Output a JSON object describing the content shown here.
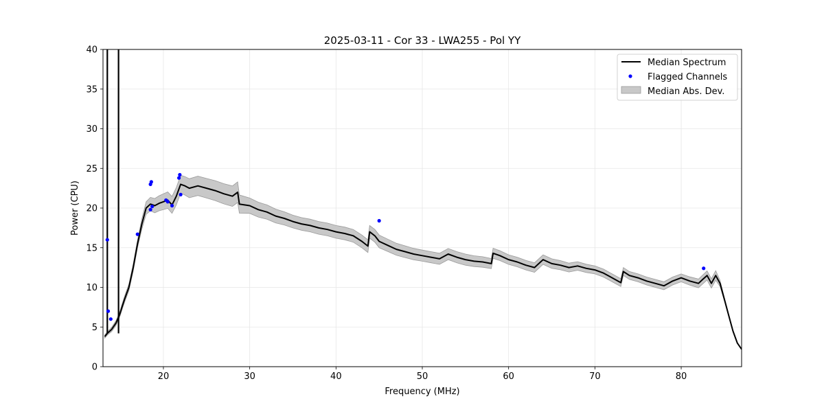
{
  "chart_data": {
    "type": "line",
    "title": "2025-03-11 - Cor 33 - LWA255 - Pol YY",
    "xlabel": "Frequency (MHz)",
    "ylabel": "Power (CPU)",
    "xlim": [
      13,
      87
    ],
    "ylim": [
      0,
      40
    ],
    "xticks": [
      20,
      30,
      40,
      50,
      60,
      70,
      80
    ],
    "yticks": [
      0,
      5,
      10,
      15,
      20,
      25,
      30,
      35,
      40
    ],
    "grid": true,
    "legend_position": "top-right",
    "colors": {
      "median": "#000000",
      "flagged": "#0000ff",
      "mad_fill": "#c8c8c8",
      "mad_edge": "#9a9a9a"
    },
    "series": [
      {
        "name": "Median Spectrum",
        "kind": "line",
        "x": [
          13.2,
          13.5,
          13.6,
          13.7,
          13.8,
          14.0,
          14.5,
          14.9,
          15.0,
          15.2,
          15.5,
          16.0,
          16.5,
          17.0,
          17.5,
          18.0,
          18.5,
          19.0,
          19.5,
          20.0,
          20.5,
          21.0,
          21.5,
          22.0,
          22.5,
          23.0,
          24.0,
          25.0,
          26.0,
          27.0,
          28.0,
          28.6,
          28.8,
          30.0,
          31.0,
          32.0,
          33.0,
          34.0,
          35.0,
          36.0,
          37.0,
          38.0,
          39.0,
          40.0,
          41.0,
          42.0,
          43.0,
          43.7,
          43.9,
          44.5,
          45.0,
          46.0,
          47.0,
          48.0,
          49.0,
          50.0,
          51.0,
          52.0,
          53.0,
          54.0,
          55.0,
          56.0,
          57.0,
          58.0,
          58.2,
          59.0,
          60.0,
          61.0,
          62.0,
          63.0,
          64.0,
          65.0,
          66.0,
          67.0,
          68.0,
          69.0,
          70.0,
          71.0,
          72.0,
          73.0,
          73.3,
          74.0,
          75.0,
          76.0,
          77.0,
          78.0,
          79.0,
          80.0,
          81.0,
          82.0,
          82.5,
          83.0,
          83.5,
          84.0,
          84.5,
          85.0,
          85.5,
          86.0,
          86.5,
          87.0
        ],
        "values": [
          3.8,
          4.2,
          4.3,
          4.4,
          4.5,
          4.7,
          5.5,
          6.5,
          6.8,
          7.5,
          8.5,
          10.0,
          12.5,
          15.5,
          18.0,
          20.0,
          20.5,
          20.3,
          20.6,
          20.8,
          21.0,
          20.4,
          21.5,
          23.0,
          22.8,
          22.5,
          22.8,
          22.5,
          22.2,
          21.8,
          21.5,
          22.0,
          20.5,
          20.3,
          19.8,
          19.5,
          19.0,
          18.7,
          18.3,
          18.0,
          17.8,
          17.5,
          17.3,
          17.0,
          16.8,
          16.5,
          15.8,
          15.2,
          17.0,
          16.5,
          15.8,
          15.3,
          14.8,
          14.5,
          14.2,
          14.0,
          13.8,
          13.6,
          14.2,
          13.8,
          13.5,
          13.3,
          13.2,
          13.0,
          14.3,
          14.0,
          13.5,
          13.2,
          12.8,
          12.5,
          13.5,
          13.0,
          12.8,
          12.5,
          12.7,
          12.4,
          12.2,
          11.8,
          11.2,
          10.6,
          12.0,
          11.5,
          11.2,
          10.8,
          10.5,
          10.2,
          10.8,
          11.2,
          10.8,
          10.5,
          11.0,
          11.5,
          10.5,
          11.5,
          10.5,
          8.5,
          6.5,
          4.5,
          3.0,
          2.2
        ],
        "spikes": [
          {
            "x": 13.5,
            "y": 40
          },
          {
            "x": 14.8,
            "y": 40
          }
        ]
      },
      {
        "name": "Flagged Channels",
        "kind": "scatter",
        "x": [
          13.5,
          13.6,
          13.9,
          17.0,
          18.5,
          18.6,
          18.7,
          18.5,
          20.3,
          20.5,
          21.0,
          21.8,
          21.9,
          22.0,
          45.0,
          82.6
        ],
        "values": [
          16.0,
          7.0,
          6.0,
          16.7,
          23.0,
          23.3,
          20.2,
          19.8,
          21.0,
          20.8,
          20.3,
          23.8,
          24.2,
          21.7,
          18.4,
          12.4
        ]
      },
      {
        "name": "Median Abs. Dev.",
        "kind": "band",
        "half_width_x": [
          13.2,
          17.0,
          18.0,
          20.0,
          23.0,
          28.6,
          29.0,
          35.0,
          40.0,
          45.0,
          50.0,
          55.0,
          60.0,
          65.0,
          70.0,
          75.0,
          80.0,
          84.0,
          85.0,
          87.0
        ],
        "half_width": [
          0.2,
          0.5,
          0.8,
          1.0,
          1.2,
          1.3,
          1.0,
          0.8,
          0.8,
          0.8,
          0.7,
          0.7,
          0.6,
          0.6,
          0.5,
          0.5,
          0.5,
          0.6,
          0.2,
          0.0
        ]
      }
    ]
  }
}
